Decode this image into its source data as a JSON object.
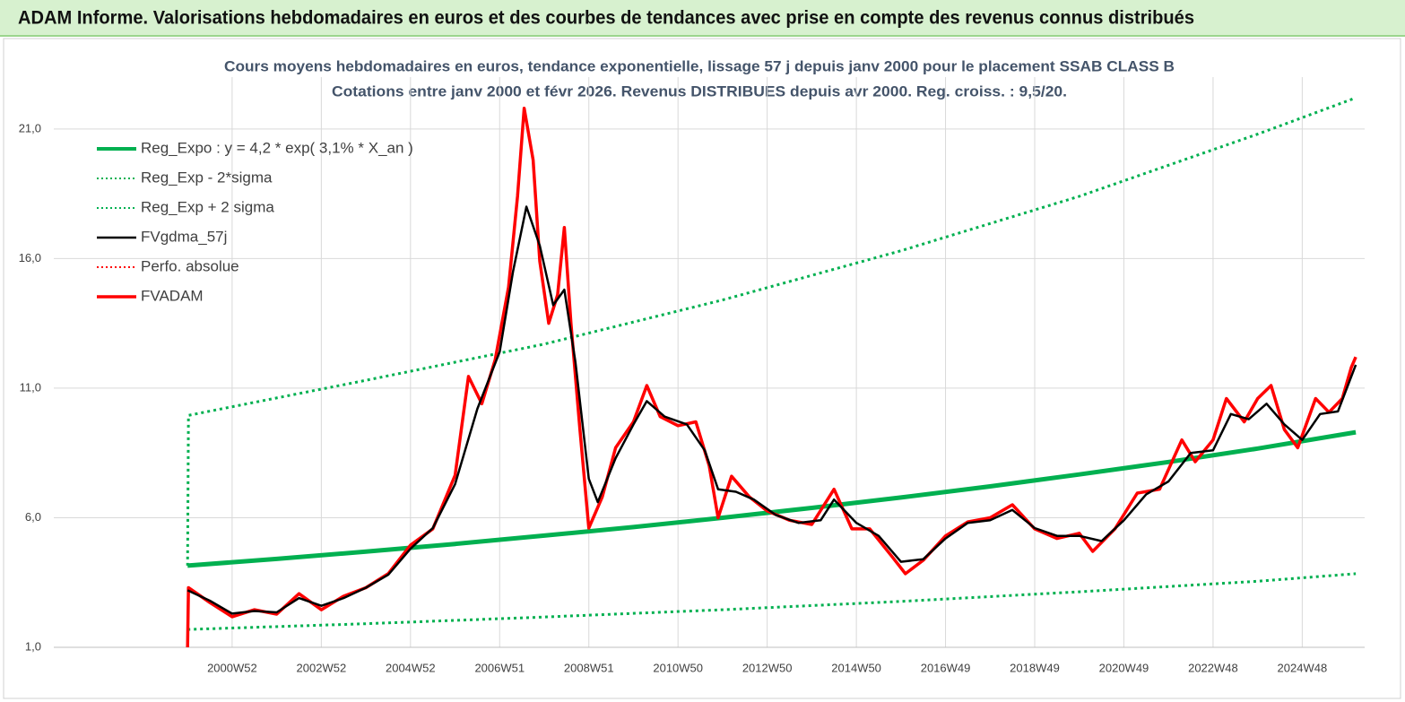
{
  "header": {
    "title": "ADAM Informe. Valorisations hebdomadaires en euros et des courbes de tendances avec prise en compte des revenus connus distribués"
  },
  "chart_data": {
    "type": "line",
    "title": "Cours moyens hebdomadaires en euros, tendance exponentielle, lissage 57 j depuis janv 2000 pour le placement SSAB CLASS B",
    "subtitle": "Cotations entre janv 2000 et févr 2026. Revenus DISTRIBUES depuis avr 2000. Reg. croiss. : 9,5/20.",
    "xlim": [
      1997,
      2026.4
    ],
    "ylim": [
      1,
      23
    ],
    "yticks": [
      {
        "value": 1,
        "label": "1,0"
      },
      {
        "value": 6,
        "label": "6,0"
      },
      {
        "value": 11,
        "label": "11,0"
      },
      {
        "value": 16,
        "label": "16,0"
      },
      {
        "value": 21,
        "label": "21,0"
      }
    ],
    "xticks": [
      {
        "value": 2001,
        "label": "2000W52"
      },
      {
        "value": 2003,
        "label": "2002W52"
      },
      {
        "value": 2005,
        "label": "2004W52"
      },
      {
        "value": 2007,
        "label": "2006W51"
      },
      {
        "value": 2009,
        "label": "2008W51"
      },
      {
        "value": 2011,
        "label": "2010W50"
      },
      {
        "value": 2013,
        "label": "2012W50"
      },
      {
        "value": 2015,
        "label": "2014W50"
      },
      {
        "value": 2017,
        "label": "2016W49"
      },
      {
        "value": 2019,
        "label": "2018W49"
      },
      {
        "value": 2021,
        "label": "2020W49"
      },
      {
        "value": 2023,
        "label": "2022W48"
      },
      {
        "value": 2025,
        "label": "2024W48"
      }
    ],
    "grid": true,
    "legend": "top-left",
    "series": [
      {
        "name": "Reg_Expo : y = 4,2 * exp( 3,1% *  X_an )",
        "color": "#00b050",
        "style": "solid",
        "width": 5,
        "x": [
          2000,
          2002,
          2004,
          2006,
          2008,
          2010,
          2012,
          2014,
          2016,
          2018,
          2020,
          2022,
          2024,
          2026.2
        ],
        "values": [
          4.15,
          4.41,
          4.69,
          4.99,
          5.31,
          5.64,
          6.0,
          6.38,
          6.78,
          7.21,
          7.67,
          8.15,
          8.67,
          9.3
        ]
      },
      {
        "name": "Reg_Exp - 2*sigma",
        "color": "#00b050",
        "style": "dotted",
        "width": 3,
        "x": [
          2000,
          2004,
          2008,
          2012,
          2016,
          2020,
          2024,
          2026.2
        ],
        "values": [
          1.69,
          1.91,
          2.17,
          2.45,
          2.77,
          3.14,
          3.55,
          3.84
        ]
      },
      {
        "name": "Reg_Exp + 2 sigma",
        "color": "#00b050",
        "style": "dotted",
        "width": 3,
        "x": [
          2000,
          2000.02,
          2004,
          2008,
          2012,
          2016,
          2020,
          2024,
          2026.2
        ],
        "values": [
          4.15,
          9.95,
          11.3,
          12.7,
          14.4,
          16.3,
          18.4,
          20.8,
          22.2
        ]
      },
      {
        "name": "FVgdma_57j",
        "color": "#000000",
        "style": "solid",
        "width": 2.5,
        "x": [
          2000,
          2000.5,
          2001,
          2001.5,
          2002,
          2002.5,
          2003,
          2003.5,
          2004,
          2004.5,
          2005,
          2005.5,
          2006,
          2006.5,
          2007,
          2007.3,
          2007.6,
          2007.9,
          2008.2,
          2008.45,
          2008.7,
          2009,
          2009.2,
          2009.6,
          2010,
          2010.3,
          2010.7,
          2011.2,
          2011.6,
          2011.9,
          2012.3,
          2012.7,
          2013.2,
          2013.7,
          2014.2,
          2014.5,
          2015,
          2015.5,
          2016,
          2016.5,
          2017,
          2017.5,
          2018,
          2018.5,
          2019,
          2019.5,
          2020,
          2020.5,
          2021,
          2021.5,
          2022,
          2022.5,
          2023,
          2023.4,
          2023.8,
          2024.2,
          2024.6,
          2025,
          2025.4,
          2025.8,
          2026.2
        ],
        "values": [
          3.2,
          2.8,
          2.3,
          2.4,
          2.35,
          2.9,
          2.6,
          2.9,
          3.3,
          3.8,
          4.8,
          5.6,
          7.3,
          10.2,
          12.4,
          15.5,
          18.0,
          16.5,
          14.2,
          14.8,
          12.0,
          7.5,
          6.6,
          8.3,
          9.6,
          10.5,
          9.9,
          9.6,
          8.6,
          7.1,
          7.0,
          6.7,
          6.1,
          5.8,
          5.9,
          6.7,
          5.8,
          5.3,
          4.3,
          4.4,
          5.2,
          5.8,
          5.9,
          6.3,
          5.6,
          5.3,
          5.3,
          5.1,
          5.9,
          6.9,
          7.4,
          8.5,
          8.6,
          10.0,
          9.8,
          10.4,
          9.6,
          9.0,
          10.0,
          10.1,
          11.9
        ]
      },
      {
        "name": "Perfo. absolue",
        "color": "#ff0000",
        "style": "dotted"
      },
      {
        "name": "FVADAM",
        "color": "#ff0000",
        "style": "solid",
        "width": 3.5,
        "x": [
          2000,
          2000.02,
          2000.5,
          2001,
          2001.5,
          2002,
          2002.5,
          2003,
          2003.5,
          2004,
          2004.5,
          2005,
          2005.5,
          2006,
          2006.3,
          2006.6,
          2006.9,
          2007.2,
          2007.4,
          2007.55,
          2007.75,
          2007.9,
          2008.1,
          2008.3,
          2008.45,
          2008.6,
          2008.8,
          2009,
          2009.3,
          2009.6,
          2010,
          2010.3,
          2010.6,
          2011,
          2011.4,
          2011.7,
          2011.9,
          2012.2,
          2012.6,
          2013,
          2013.5,
          2014,
          2014.5,
          2014.9,
          2015.3,
          2015.8,
          2016.1,
          2016.5,
          2017,
          2017.5,
          2018,
          2018.5,
          2019,
          2019.5,
          2020,
          2020.3,
          2020.8,
          2021.3,
          2021.8,
          2022.3,
          2022.6,
          2023,
          2023.3,
          2023.7,
          2024,
          2024.3,
          2024.6,
          2024.9,
          2025.3,
          2025.6,
          2025.9,
          2026.1,
          2026.2
        ],
        "values": [
          1.0,
          3.3,
          2.73,
          2.18,
          2.45,
          2.28,
          3.07,
          2.45,
          2.97,
          3.3,
          3.84,
          4.94,
          5.57,
          7.64,
          11.45,
          10.4,
          12.1,
          14.9,
          18.4,
          21.8,
          19.8,
          15.9,
          13.5,
          14.6,
          17.2,
          13.5,
          9.4,
          5.6,
          6.8,
          8.7,
          9.7,
          11.1,
          9.9,
          9.55,
          9.7,
          8.0,
          6.0,
          7.6,
          6.8,
          6.26,
          5.9,
          5.74,
          7.1,
          5.57,
          5.57,
          4.5,
          3.84,
          4.36,
          5.3,
          5.84,
          6.0,
          6.5,
          5.57,
          5.2,
          5.4,
          4.7,
          5.57,
          6.95,
          7.1,
          9.0,
          8.16,
          9.0,
          10.6,
          9.7,
          10.6,
          11.1,
          9.4,
          8.7,
          10.6,
          10.07,
          10.6,
          11.8,
          12.2
        ]
      }
    ]
  }
}
